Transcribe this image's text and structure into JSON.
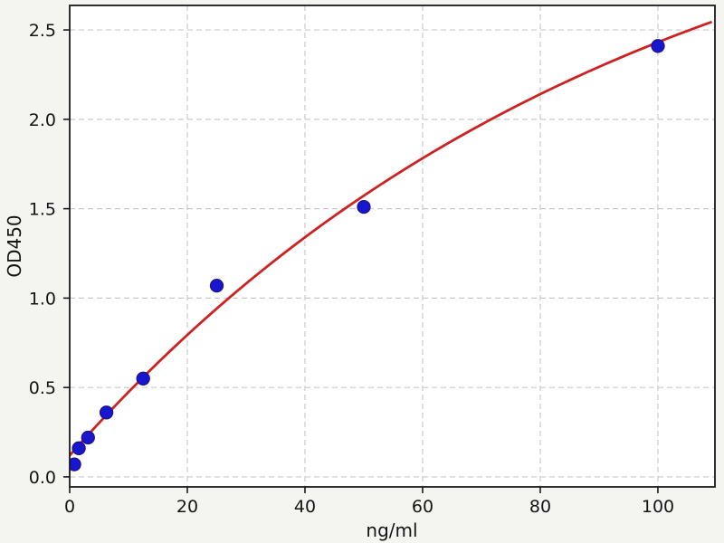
{
  "chart_data": {
    "type": "scatter",
    "title": "",
    "xlabel": "ng/ml",
    "ylabel": "OD450",
    "x_ticks": [
      0,
      20,
      40,
      60,
      80,
      100
    ],
    "y_ticks": [
      0.0,
      0.5,
      1.0,
      1.5,
      2.0,
      2.5
    ],
    "xlim": [
      0,
      109.7
    ],
    "ylim": [
      -0.056,
      2.637
    ],
    "grid": true,
    "legend": "none",
    "series": [
      {
        "name": "standard-points",
        "type": "scatter",
        "marker": "circle",
        "color": "#1717cf",
        "edge_color": "#241086",
        "x": [
          0.78,
          1.56,
          3.12,
          6.25,
          12.5,
          25,
          50,
          100
        ],
        "y": [
          0.07,
          0.16,
          0.22,
          0.36,
          0.55,
          1.07,
          1.51,
          2.41
        ]
      },
      {
        "name": "fit-curve",
        "type": "line",
        "color": "#cc2222",
        "model": "y = c + a*(1 - exp(-x/tau))",
        "params": {
          "a": 3.55,
          "tau": 95,
          "c": 0.12
        },
        "x_range": [
          0,
          109.7
        ]
      }
    ],
    "colors": {
      "figure_bg": "#f4f4f1",
      "plot_bg": "#ffffff",
      "grid": "#c9c9c9",
      "spine": "#1a1a1a",
      "tick": "#1a1a1a",
      "tick_label": "#151515"
    }
  }
}
